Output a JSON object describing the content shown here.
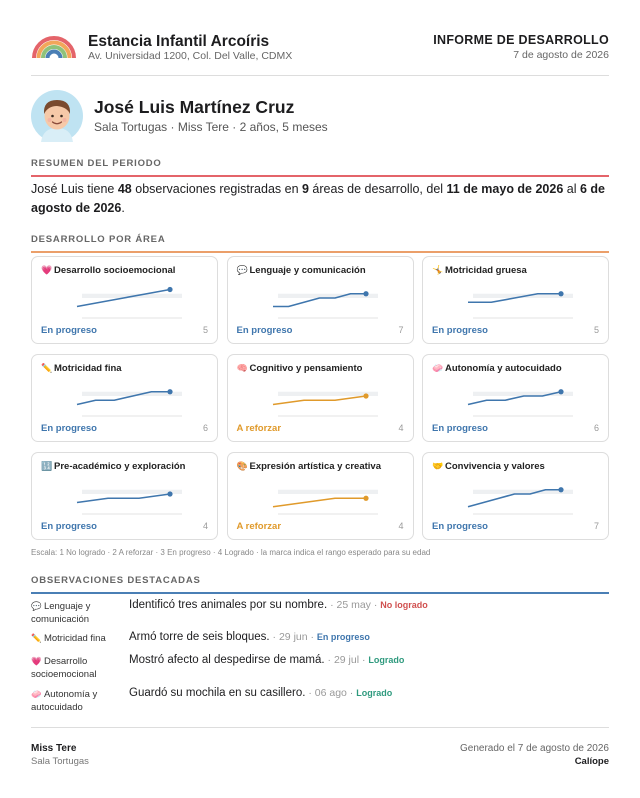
{
  "school": {
    "name": "Estancia Infantil Arcoíris",
    "address": "Av. Universidad 1200, Col. Del Valle, CDMX"
  },
  "report": {
    "title": "INFORME DE DESARROLLO",
    "date": "7 de agosto de 2026"
  },
  "child": {
    "name": "José Luis Martínez Cruz",
    "meta": "Sala Tortugas · Miss Tere · 2 años, 5 meses"
  },
  "sections": {
    "summary": "RESUMEN DEL PERIODO",
    "areas": "DESARROLLO POR ÁREA",
    "observations": "OBSERVACIONES DESTACADAS"
  },
  "summary": {
    "p1": "José Luis tiene ",
    "count": "48",
    "p2": " observaciones registradas en ",
    "areas": "9",
    "p3": " áreas de desarrollo, del ",
    "start": "11 de mayo de 2026",
    "p4": " al ",
    "end": "6 de agosto de 2026",
    "p5": "."
  },
  "colors": {
    "progress": "#3f76ad",
    "reinforce": "#e09a2b",
    "band": "#eef0f2"
  },
  "areas": [
    {
      "icon": "💗",
      "icon_name": "heart-icon",
      "title": "Desarrollo socioemocional",
      "status": "En progreso",
      "kind": "prog",
      "count": "5",
      "values": [
        1,
        1.5,
        2,
        2.5,
        3
      ]
    },
    {
      "icon": "💬",
      "icon_name": "speech-bubble-icon",
      "title": "Lenguaje y comunicación",
      "status": "En progreso",
      "kind": "prog",
      "count": "7",
      "values": [
        1,
        1,
        1.5,
        2,
        2,
        2.5,
        2.5
      ]
    },
    {
      "icon": "🤸",
      "icon_name": "gymnast-icon",
      "title": "Motricidad gruesa",
      "status": "En progreso",
      "kind": "prog",
      "count": "5",
      "values": [
        1.5,
        1.5,
        2,
        2.5,
        2.5
      ]
    },
    {
      "icon": "✏️",
      "icon_name": "pencil-icon",
      "title": "Motricidad fina",
      "status": "En progreso",
      "kind": "prog",
      "count": "6",
      "values": [
        1,
        1.5,
        1.5,
        2,
        2.5,
        2.5
      ]
    },
    {
      "icon": "🧠",
      "icon_name": "brain-icon",
      "title": "Cognitivo y pensamiento",
      "status": "A reforzar",
      "kind": "ref",
      "count": "4",
      "values": [
        1,
        1.5,
        1.5,
        2
      ]
    },
    {
      "icon": "🧼",
      "icon_name": "soap-icon",
      "title": "Autonomía y autocuidado",
      "status": "En progreso",
      "kind": "prog",
      "count": "6",
      "values": [
        1,
        1.5,
        1.5,
        2,
        2,
        2.5
      ]
    },
    {
      "icon": "🔢",
      "icon_name": "numbers-icon",
      "title": "Pre-académico y exploración",
      "status": "En progreso",
      "kind": "prog",
      "count": "4",
      "values": [
        1,
        1.5,
        1.5,
        2
      ]
    },
    {
      "icon": "🎨",
      "icon_name": "palette-icon",
      "title": "Expresión artística y creativa",
      "status": "A reforzar",
      "kind": "ref",
      "count": "4",
      "values": [
        0.5,
        1,
        1.5,
        1.5
      ]
    },
    {
      "icon": "🤝",
      "icon_name": "handshake-icon",
      "title": "Convivencia y valores",
      "status": "En progreso",
      "kind": "prog",
      "count": "7",
      "values": [
        0.5,
        1,
        1.5,
        2,
        2,
        2.5,
        2.5
      ]
    }
  ],
  "scale_note": "Escala: 1 No logrado · 2 A reforzar · 3 En progreso · 4 Logrado · la marca indica el rango esperado para su edad",
  "observations": [
    {
      "icon": "💬",
      "icon_name": "speech-bubble-icon",
      "area": "Lenguaje y comunicación",
      "text": "Identificó tres animales por su nombre.",
      "date": "25 may",
      "status": "No logrado",
      "kind": "nl"
    },
    {
      "icon": "✏️",
      "icon_name": "pencil-icon",
      "area": "Motricidad fina",
      "text": "Armó torre de seis bloques.",
      "date": "29 jun",
      "status": "En progreso",
      "kind": "ep"
    },
    {
      "icon": "💗",
      "icon_name": "heart-icon",
      "area": "Desarrollo socioemocional",
      "text": "Mostró afecto al despedirse de mamá.",
      "date": "29 jul",
      "status": "Logrado",
      "kind": "lo"
    },
    {
      "icon": "🧼",
      "icon_name": "soap-icon",
      "area": "Autonomía y autocuidado",
      "text": "Guardó su mochila en su casillero.",
      "date": "06 ago",
      "status": "Logrado",
      "kind": "lo"
    }
  ],
  "footer": {
    "teacher": "Miss Tere",
    "room": "Sala Tortugas",
    "generated": "Generado el 7 de agosto de 2026",
    "brand": "Calíope"
  }
}
